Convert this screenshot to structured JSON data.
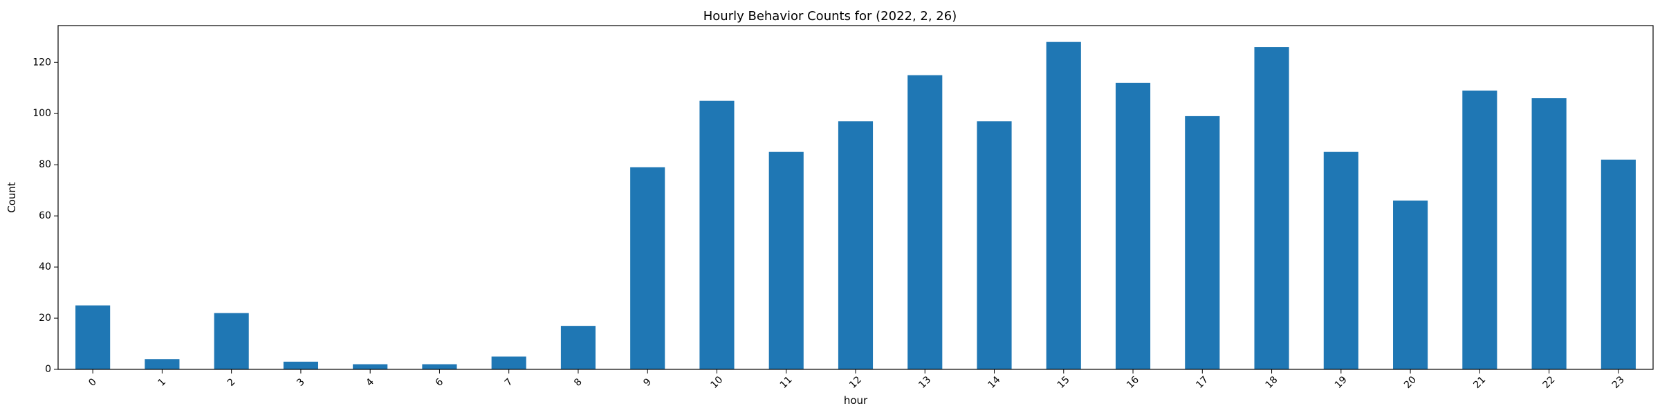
{
  "chart_data": {
    "type": "bar",
    "title": "Hourly Behavior Counts for (2022, 2, 26)",
    "xlabel": "hour",
    "ylabel": "Count",
    "categories": [
      "0",
      "1",
      "2",
      "3",
      "4",
      "6",
      "7",
      "8",
      "9",
      "10",
      "11",
      "12",
      "13",
      "14",
      "15",
      "16",
      "17",
      "18",
      "19",
      "20",
      "21",
      "22",
      "23"
    ],
    "values": [
      25,
      4,
      22,
      3,
      2,
      2,
      5,
      17,
      79,
      105,
      85,
      97,
      115,
      97,
      128,
      112,
      99,
      126,
      85,
      66,
      109,
      106,
      82
    ],
    "ylim": [
      0,
      134.4
    ],
    "yticks": [
      0,
      20,
      40,
      60,
      80,
      100,
      120
    ],
    "grid": false,
    "legend": "none",
    "bar_color": "#1f77b4"
  }
}
